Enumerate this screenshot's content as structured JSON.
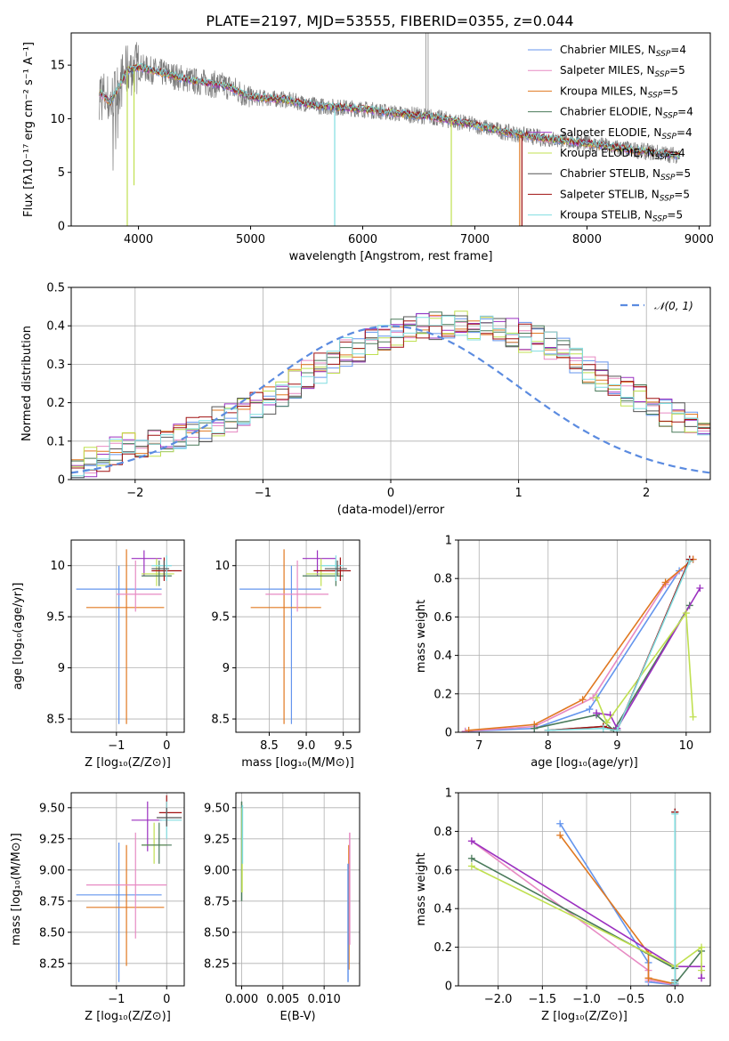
{
  "palette": {
    "Chabrier MILES": "#6495ed",
    "Salpeter MILES": "#e78ac3",
    "Kroupa MILES": "#e07820",
    "Chabrier ELODIE": "#4a7a5a",
    "Salpeter ELODIE": "#9b30c0",
    "Kroupa ELODIE": "#c0e050",
    "Chabrier STELIB": "#555555",
    "Salpeter STELIB": "#a01010",
    "Kroupa STELIB": "#80dde0"
  },
  "chart_data": [
    {
      "id": "spectrum",
      "type": "line",
      "title": "PLATE=2197, MJD=53555, FIBERID=0355, z=0.044",
      "xlabel": "wavelength [Angstrom, rest frame]",
      "ylabel": "Flux [fλ10⁻¹⁷ erg cm⁻² s⁻¹ A⁻¹]",
      "xlim": [
        3400,
        9100
      ],
      "ylim": [
        0,
        18
      ],
      "xticks": [
        4000,
        5000,
        6000,
        7000,
        8000,
        9000
      ],
      "yticks": [
        0,
        5,
        10,
        15
      ],
      "legend_position": "top-right",
      "legend": [
        "Chabrier MILES, N_SSP=4",
        "Salpeter MILES, N_SSP=5",
        "Kroupa MILES, N_SSP=5",
        "Chabrier ELODIE, N_SSP=4",
        "Salpeter ELODIE, N_SSP=4",
        "Kroupa ELODIE, N_SSP=4",
        "Chabrier STELIB, N_SSP=5",
        "Salpeter STELIB, N_SSP=5",
        "Kroupa STELIB, N_SSP=5"
      ],
      "legend_colors": [
        "#6495ed",
        "#e78ac3",
        "#e07820",
        "#4a7a5a",
        "#9b30c0",
        "#c0e050",
        "#555555",
        "#a01010",
        "#80dde0"
      ],
      "continuum": {
        "x": [
          3650,
          3750,
          3900,
          4000,
          4200,
          4500,
          4800,
          5000,
          5300,
          5600,
          6000,
          6300,
          6600,
          6800,
          7000,
          7300,
          7600,
          8000,
          8400,
          8800
        ],
        "y": [
          12.5,
          11.5,
          14.5,
          14.8,
          14.3,
          13.5,
          13.0,
          12.0,
          11.8,
          11.2,
          10.9,
          10.5,
          10.2,
          9.8,
          9.4,
          8.7,
          8.2,
          7.7,
          7.1,
          6.6
        ]
      },
      "spikes": [
        {
          "model": "Kroupa ELODIE",
          "x": 3900,
          "y": 0
        },
        {
          "model": "Kroupa ELODIE",
          "x": 3960,
          "y": 3.8
        },
        {
          "model": "Kroupa STELIB",
          "x": 5750,
          "y": 0
        },
        {
          "model": "Kroupa ELODIE",
          "x": 6790,
          "y": 0
        },
        {
          "model": "Kroupa MILES",
          "x": 7400,
          "y": 0
        },
        {
          "model": "Salpeter STELIB",
          "x": 7420,
          "y": 0
        }
      ],
      "emission": [
        {
          "x": 6563,
          "y": 18
        },
        {
          "x": 6583,
          "y": 18
        }
      ]
    },
    {
      "id": "residuals",
      "type": "bar",
      "xlabel": "(data-model)/error",
      "ylabel": "Normed distribution",
      "xlim": [
        -2.5,
        2.5
      ],
      "ylim": [
        0,
        0.5
      ],
      "xticks": [
        -2,
        -1,
        0,
        1,
        2
      ],
      "yticks": [
        0.0,
        0.1,
        0.2,
        0.3,
        0.4,
        0.5
      ],
      "legend": [
        "𝒩(0, 1)"
      ],
      "legend_position": "top-right",
      "bin_start": -2.5,
      "bin_width": 0.1,
      "envelope": [
        0.03,
        0.045,
        0.06,
        0.075,
        0.085,
        0.09,
        0.1,
        0.11,
        0.12,
        0.125,
        0.135,
        0.15,
        0.16,
        0.175,
        0.19,
        0.21,
        0.23,
        0.25,
        0.27,
        0.29,
        0.31,
        0.33,
        0.345,
        0.36,
        0.37,
        0.38,
        0.39,
        0.395,
        0.4,
        0.4,
        0.4,
        0.4,
        0.395,
        0.39,
        0.38,
        0.37,
        0.36,
        0.345,
        0.33,
        0.31,
        0.29,
        0.27,
        0.25,
        0.23,
        0.21,
        0.19,
        0.175,
        0.16,
        0.15,
        0.135,
        0.12,
        0.11,
        0.1,
        0.09,
        0.08,
        0.075,
        0.065,
        0.055,
        0.045,
        0.04,
        0.035,
        0.03,
        0.03,
        0.03,
        0.03,
        0.03,
        0.03,
        0.03,
        0.03,
        0.03
      ],
      "gaussian": {
        "mean": 0,
        "sigma": 1,
        "amplitude": 0.399
      }
    },
    {
      "id": "age_vs_Z",
      "type": "scatter",
      "xlabel": "Z [log₁₀(Z/Z⊙)]",
      "ylabel": "age  [log₁₀(age/yr)]",
      "xlim": [
        -1.9,
        0.35
      ],
      "ylim": [
        8.37,
        10.25
      ],
      "xticks": [
        -1,
        0
      ],
      "yticks": [
        8.5,
        9.0,
        9.5,
        10.0
      ],
      "errorbars": [
        {
          "model": "Chabrier MILES",
          "x": -0.95,
          "y": 9.77,
          "xlo": -1.8,
          "xhi": -0.1,
          "ylo": 8.45,
          "yhi": 10.0
        },
        {
          "model": "Kroupa MILES",
          "x": -0.8,
          "y": 9.59,
          "xlo": -1.6,
          "xhi": -0.05,
          "ylo": 8.45,
          "yhi": 10.16
        },
        {
          "model": "Salpeter MILES",
          "x": -0.62,
          "y": 9.72,
          "xlo": -1.0,
          "xhi": -0.1,
          "ylo": 9.55,
          "yhi": 10.05
        },
        {
          "model": "Salpeter ELODIE",
          "x": -0.45,
          "y": 10.07,
          "xlo": -0.7,
          "xhi": -0.1,
          "ylo": 9.9,
          "yhi": 10.15
        },
        {
          "model": "Kroupa ELODIE",
          "x": -0.2,
          "y": 9.92,
          "xlo": -0.5,
          "xhi": 0.15,
          "ylo": 9.8,
          "yhi": 10.07
        },
        {
          "model": "Chabrier ELODIE",
          "x": -0.15,
          "y": 9.9,
          "xlo": -0.5,
          "xhi": 0.1,
          "ylo": 9.8,
          "yhi": 10.05
        },
        {
          "model": "Salpeter STELIB",
          "x": -0.05,
          "y": 9.95,
          "xlo": -0.3,
          "xhi": 0.3,
          "ylo": 9.85,
          "yhi": 10.08
        },
        {
          "model": "Kroupa STELIB",
          "x": 0.0,
          "y": 10.0,
          "xlo": -0.3,
          "xhi": 0.1,
          "ylo": 9.85,
          "yhi": 10.1
        },
        {
          "model": "Chabrier STELIB",
          "x": -0.05,
          "y": 9.97,
          "xlo": -0.3,
          "xhi": 0.05,
          "ylo": 9.9,
          "yhi": 10.05
        }
      ]
    },
    {
      "id": "age_vs_mass",
      "type": "scatter",
      "xlabel": "mass [log₁₀(M/M⊙)]",
      "ylabel": "",
      "xlim": [
        8.05,
        9.72
      ],
      "ylim": [
        8.37,
        10.25
      ],
      "xticks": [
        8.5,
        9.0,
        9.5
      ],
      "xticklabels": [
        "8.5",
        "9.0",
        "9.5"
      ],
      "yticks": [
        8.5,
        9.0,
        9.5,
        10.0
      ],
      "errorbars": [
        {
          "model": "Chabrier MILES",
          "x": 8.8,
          "y": 9.77,
          "xlo": 8.1,
          "xhi": 9.2,
          "ylo": 8.45,
          "yhi": 10.0
        },
        {
          "model": "Kroupa MILES",
          "x": 8.7,
          "y": 9.59,
          "xlo": 8.25,
          "xhi": 9.2,
          "ylo": 8.45,
          "yhi": 10.16
        },
        {
          "model": "Salpeter MILES",
          "x": 8.88,
          "y": 9.72,
          "xlo": 8.45,
          "xhi": 9.3,
          "ylo": 9.55,
          "yhi": 10.05
        },
        {
          "model": "Salpeter ELODIE",
          "x": 9.15,
          "y": 10.07,
          "xlo": 8.95,
          "xhi": 9.4,
          "ylo": 9.9,
          "yhi": 10.15
        },
        {
          "model": "Kroupa ELODIE",
          "x": 9.2,
          "y": 9.92,
          "xlo": 9.0,
          "xhi": 9.45,
          "ylo": 9.8,
          "yhi": 10.07
        },
        {
          "model": "Chabrier ELODIE",
          "x": 9.4,
          "y": 9.9,
          "xlo": 8.95,
          "xhi": 9.5,
          "ylo": 9.8,
          "yhi": 10.05
        },
        {
          "model": "Salpeter STELIB",
          "x": 9.46,
          "y": 9.95,
          "xlo": 9.1,
          "xhi": 9.6,
          "ylo": 9.85,
          "yhi": 10.08
        },
        {
          "model": "Kroupa STELIB",
          "x": 9.4,
          "y": 10.0,
          "xlo": 9.2,
          "xhi": 9.5,
          "ylo": 9.85,
          "yhi": 10.1
        },
        {
          "model": "Chabrier STELIB",
          "x": 9.42,
          "y": 9.97,
          "xlo": 9.25,
          "xhi": 9.55,
          "ylo": 9.9,
          "yhi": 10.05
        }
      ]
    },
    {
      "id": "massweight_vs_age",
      "type": "line",
      "xlabel": "age  [log₁₀(age/yr)]",
      "ylabel": "mass weight",
      "xlim": [
        6.7,
        10.35
      ],
      "ylim": [
        0,
        1.0
      ],
      "xticks": [
        7,
        8,
        9,
        10
      ],
      "yticks": [
        0.0,
        0.2,
        0.4,
        0.6,
        0.8,
        1.0
      ],
      "series": [
        {
          "name": "Chabrier MILES",
          "x": [
            6.8,
            7.8,
            8.6,
            9.9,
            10.1
          ],
          "y": [
            0.005,
            0.02,
            0.12,
            0.84,
            0.9
          ]
        },
        {
          "name": "Salpeter MILES",
          "x": [
            6.8,
            7.8,
            8.65,
            9.7,
            10.1
          ],
          "y": [
            0.005,
            0.03,
            0.18,
            0.77,
            0.9
          ]
        },
        {
          "name": "Kroupa MILES",
          "x": [
            6.85,
            7.8,
            8.5,
            9.7,
            10.1
          ],
          "y": [
            0.01,
            0.04,
            0.17,
            0.78,
            0.9
          ]
        },
        {
          "name": "Chabrier ELODIE",
          "x": [
            7.8,
            8.7,
            8.95,
            10.05
          ],
          "y": [
            0.02,
            0.09,
            0.01,
            0.66
          ]
        },
        {
          "name": "Salpeter ELODIE",
          "x": [
            8.7,
            8.9,
            9.0,
            10.2
          ],
          "y": [
            0.1,
            0.09,
            0.02,
            0.75
          ]
        },
        {
          "name": "Kroupa ELODIE",
          "x": [
            8.7,
            8.85,
            10.0,
            10.1
          ],
          "y": [
            0.18,
            0.05,
            0.62,
            0.08
          ]
        },
        {
          "name": "Chabrier STELIB",
          "x": [
            8.0,
            8.8,
            9.0,
            10.05
          ],
          "y": [
            0.01,
            0.03,
            0.01,
            0.9
          ]
        },
        {
          "name": "Salpeter STELIB",
          "x": [
            8.0,
            8.8,
            9.0,
            10.05
          ],
          "y": [
            0.01,
            0.03,
            0.01,
            0.9
          ]
        },
        {
          "name": "Kroupa STELIB",
          "x": [
            8.0,
            8.8,
            9.0,
            10.05
          ],
          "y": [
            0.01,
            0.02,
            0.01,
            0.89
          ]
        }
      ]
    },
    {
      "id": "mass_vs_Z",
      "type": "scatter",
      "xlabel": "Z [log₁₀(Z/Z⊙)]",
      "ylabel": "mass [log₁₀(M/M⊙)]",
      "xlim": [
        -1.9,
        0.35
      ],
      "ylim": [
        8.07,
        9.62
      ],
      "xticks": [
        -1,
        0
      ],
      "yticks": [
        8.25,
        8.5,
        8.75,
        9.0,
        9.25,
        9.5
      ],
      "yticklabels": [
        "8.25",
        "8.50",
        "8.75",
        "9.00",
        "9.25",
        "9.50"
      ],
      "errorbars": [
        {
          "model": "Chabrier MILES",
          "x": -0.95,
          "y": 8.8,
          "xlo": -1.8,
          "xhi": -0.1,
          "ylo": 8.1,
          "yhi": 9.22
        },
        {
          "model": "Kroupa MILES",
          "x": -0.8,
          "y": 8.7,
          "xlo": -1.6,
          "xhi": -0.05,
          "ylo": 8.23,
          "yhi": 9.2
        },
        {
          "model": "Salpeter MILES",
          "x": -0.62,
          "y": 8.88,
          "xlo": -1.6,
          "xhi": 0.0,
          "ylo": 8.45,
          "yhi": 9.3
        },
        {
          "model": "Salpeter ELODIE",
          "x": -0.38,
          "y": 9.4,
          "xlo": -0.7,
          "xhi": -0.1,
          "ylo": 9.15,
          "yhi": 9.55
        },
        {
          "model": "Kroupa ELODIE",
          "x": -0.25,
          "y": 9.2,
          "xlo": -0.5,
          "xhi": 0.0,
          "ylo": 9.05,
          "yhi": 9.38
        },
        {
          "model": "Chabrier ELODIE",
          "x": -0.15,
          "y": 9.2,
          "xlo": -0.5,
          "xhi": 0.1,
          "ylo": 9.05,
          "yhi": 9.38
        },
        {
          "model": "Salpeter STELIB",
          "x": 0.0,
          "y": 9.46,
          "xlo": -0.15,
          "xhi": 0.3,
          "ylo": 9.35,
          "yhi": 9.6
        },
        {
          "model": "Kroupa STELIB",
          "x": 0.0,
          "y": 9.4,
          "xlo": -0.15,
          "xhi": 0.3,
          "ylo": 9.25,
          "yhi": 9.55
        },
        {
          "model": "Chabrier STELIB",
          "x": 0.0,
          "y": 9.42,
          "xlo": -0.2,
          "xhi": 0.3,
          "ylo": 9.35,
          "yhi": 9.5
        }
      ]
    },
    {
      "id": "mass_vs_ebv",
      "type": "scatter",
      "xlabel": "E(B-V)",
      "ylabel": "",
      "xlim": [
        -0.0007,
        0.0143
      ],
      "ylim": [
        8.07,
        9.62
      ],
      "xticks": [
        0.0,
        0.005,
        0.01
      ],
      "xticklabels": [
        "0.000",
        "0.005",
        "0.010"
      ],
      "yticks": [
        8.25,
        8.5,
        8.75,
        9.0,
        9.25,
        9.5
      ],
      "yticklabels": [
        "8.25",
        "8.50",
        "8.75",
        "9.00",
        "9.25",
        "9.50"
      ],
      "vlines": [
        {
          "model": "Chabrier ELODIE",
          "x": 0.0,
          "ylo": 8.75,
          "yhi": 9.55
        },
        {
          "model": "Kroupa ELODIE",
          "x": 5e-05,
          "ylo": 8.82,
          "yhi": 9.5
        },
        {
          "model": "Kroupa STELIB",
          "x": 0.0001,
          "ylo": 9.05,
          "yhi": 9.52
        },
        {
          "model": "Kroupa MILES",
          "x": 0.013,
          "ylo": 8.2,
          "yhi": 9.2
        },
        {
          "model": "Salpeter MILES",
          "x": 0.0131,
          "ylo": 8.4,
          "yhi": 9.3
        },
        {
          "model": "Chabrier MILES",
          "x": 0.0129,
          "ylo": 8.1,
          "yhi": 9.05
        }
      ]
    },
    {
      "id": "massweight_vs_Z",
      "type": "line",
      "xlabel": "Z [log₁₀(Z/Z⊙)]",
      "ylabel": "mass weight",
      "xlim": [
        -2.45,
        0.4
      ],
      "ylim": [
        0,
        1.0
      ],
      "xticks": [
        -2.0,
        -1.5,
        -1.0,
        -0.5,
        0.0
      ],
      "xticklabels": [
        "−2.0",
        "−1.5",
        "−1.0",
        "−0.5",
        "0.0"
      ],
      "yticks": [
        0.0,
        0.2,
        0.4,
        0.6,
        0.8,
        1.0
      ],
      "series": [
        {
          "name": "Chabrier MILES",
          "x": [
            -1.3,
            -0.3,
            -0.3,
            0.0
          ],
          "y": [
            0.84,
            0.12,
            0.02,
            0.005
          ]
        },
        {
          "name": "Salpeter MILES",
          "x": [
            -2.3,
            -0.3,
            -0.3,
            0.0
          ],
          "y": [
            0.75,
            0.08,
            0.03,
            0.005
          ]
        },
        {
          "name": "Kroupa MILES",
          "x": [
            -1.3,
            -0.3,
            -0.3,
            0.0
          ],
          "y": [
            0.78,
            0.17,
            0.04,
            0.01
          ]
        },
        {
          "name": "Chabrier ELODIE",
          "x": [
            -2.3,
            0.0,
            0.0,
            0.3
          ],
          "y": [
            0.66,
            0.09,
            0.01,
            0.18
          ]
        },
        {
          "name": "Salpeter ELODIE",
          "x": [
            -2.3,
            0.0,
            0.3,
            0.3
          ],
          "y": [
            0.75,
            0.1,
            0.1,
            0.04
          ]
        },
        {
          "name": "Kroupa ELODIE",
          "x": [
            -2.3,
            0.0,
            0.3,
            0.3
          ],
          "y": [
            0.62,
            0.1,
            0.2,
            0.08
          ]
        },
        {
          "name": "Chabrier STELIB",
          "x": [
            0.0,
            0.0,
            0.0
          ],
          "y": [
            0.9,
            0.01,
            0.03
          ]
        },
        {
          "name": "Salpeter STELIB",
          "x": [
            0.0,
            0.0,
            0.0
          ],
          "y": [
            0.9,
            0.01,
            0.02
          ]
        },
        {
          "name": "Kroupa STELIB",
          "x": [
            0.0,
            0.0,
            0.0
          ],
          "y": [
            0.89,
            0.01,
            0.02
          ]
        }
      ]
    }
  ]
}
